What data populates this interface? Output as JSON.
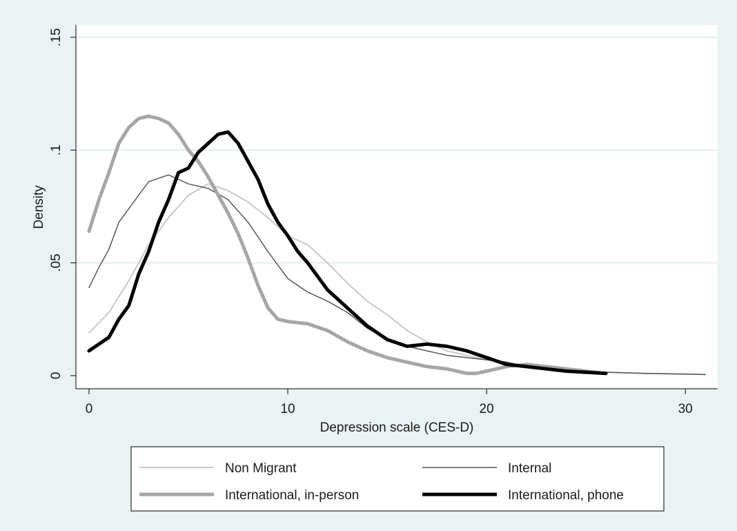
{
  "chart_data": {
    "type": "line",
    "title": "",
    "xlabel": "Depression scale (CES-D)",
    "ylabel": "Density",
    "xlim": [
      0,
      31
    ],
    "ylim": [
      0,
      0.15
    ],
    "xticks": [
      0,
      10,
      20,
      30
    ],
    "xtick_labels": [
      "0",
      "10",
      "20",
      "30"
    ],
    "yticks": [
      0,
      0.05,
      0.1,
      0.15
    ],
    "ytick_labels": [
      "0",
      ".05",
      ".1",
      ".15"
    ],
    "grid": "horizontal",
    "legend_position": "bottom",
    "series": [
      {
        "name": "Non Migrant",
        "color": "#c8c8c8",
        "x": [
          0,
          1,
          2,
          3,
          4,
          5,
          6,
          7,
          8,
          9,
          10,
          11,
          12,
          13,
          14,
          15,
          16,
          17,
          18,
          19,
          20,
          21,
          22,
          24,
          26,
          28,
          31
        ],
        "y": [
          0.019,
          0.028,
          0.042,
          0.058,
          0.07,
          0.08,
          0.085,
          0.082,
          0.077,
          0.07,
          0.062,
          0.058,
          0.05,
          0.041,
          0.033,
          0.027,
          0.02,
          0.015,
          0.011,
          0.009,
          0.007,
          0.006,
          0.004,
          0.002,
          0.0015,
          0.001,
          0.0005
        ]
      },
      {
        "name": "Internal",
        "color": "#555555",
        "x": [
          0,
          0.5,
          1,
          1.5,
          2,
          3,
          4,
          5,
          6,
          7,
          8,
          9,
          10,
          11,
          12,
          13,
          14,
          15,
          16,
          17,
          18,
          19,
          20,
          21,
          22,
          24,
          26,
          28,
          31
        ],
        "y": [
          0.039,
          0.048,
          0.056,
          0.068,
          0.074,
          0.086,
          0.089,
          0.085,
          0.083,
          0.078,
          0.068,
          0.055,
          0.043,
          0.037,
          0.033,
          0.028,
          0.021,
          0.016,
          0.013,
          0.011,
          0.009,
          0.008,
          0.007,
          0.006,
          0.004,
          0.002,
          0.0015,
          0.001,
          0.0005
        ]
      },
      {
        "name": "International, in-person",
        "color": "#a6a6a6",
        "x": [
          0,
          0.5,
          1,
          1.5,
          2,
          2.5,
          3,
          3.5,
          4,
          4.5,
          5,
          5.5,
          6,
          6.5,
          7,
          7.5,
          8,
          8.5,
          9,
          9.5,
          10,
          11,
          12,
          13,
          14,
          15,
          16,
          17,
          18,
          19,
          19.5,
          20,
          21,
          22,
          23,
          24,
          25,
          26
        ],
        "y": [
          0.064,
          0.078,
          0.09,
          0.103,
          0.11,
          0.114,
          0.115,
          0.114,
          0.112,
          0.107,
          0.1,
          0.095,
          0.088,
          0.08,
          0.072,
          0.063,
          0.052,
          0.04,
          0.03,
          0.025,
          0.024,
          0.023,
          0.02,
          0.015,
          0.011,
          0.008,
          0.006,
          0.004,
          0.003,
          0.001,
          0.001,
          0.002,
          0.004,
          0.005,
          0.004,
          0.003,
          0.002,
          0.001
        ]
      },
      {
        "name": "International, phone",
        "color": "#000000",
        "x": [
          0,
          0.5,
          1,
          1.5,
          2,
          2.5,
          3,
          3.5,
          4,
          4.5,
          5,
          5.5,
          6,
          6.5,
          7,
          7.5,
          8,
          8.5,
          9,
          9.5,
          10,
          10.5,
          11,
          11.5,
          12,
          13,
          14,
          15,
          16,
          17,
          18,
          19,
          20,
          21,
          22,
          23,
          24,
          25,
          26
        ],
        "y": [
          0.011,
          0.014,
          0.017,
          0.025,
          0.031,
          0.045,
          0.055,
          0.068,
          0.078,
          0.09,
          0.092,
          0.099,
          0.103,
          0.107,
          0.108,
          0.103,
          0.095,
          0.087,
          0.076,
          0.068,
          0.062,
          0.055,
          0.05,
          0.044,
          0.038,
          0.03,
          0.022,
          0.016,
          0.013,
          0.014,
          0.013,
          0.011,
          0.008,
          0.005,
          0.004,
          0.003,
          0.002,
          0.0015,
          0.001
        ]
      }
    ]
  },
  "legend": {
    "items": [
      {
        "label": "Non Migrant",
        "color": "#c8c8c8",
        "stroke": 2
      },
      {
        "label": "Internal",
        "color": "#555555",
        "stroke": 1.5
      },
      {
        "label": "International, in-person",
        "color": "#a6a6a6",
        "stroke": 5
      },
      {
        "label": "International, phone",
        "color": "#000000",
        "stroke": 5
      }
    ]
  }
}
